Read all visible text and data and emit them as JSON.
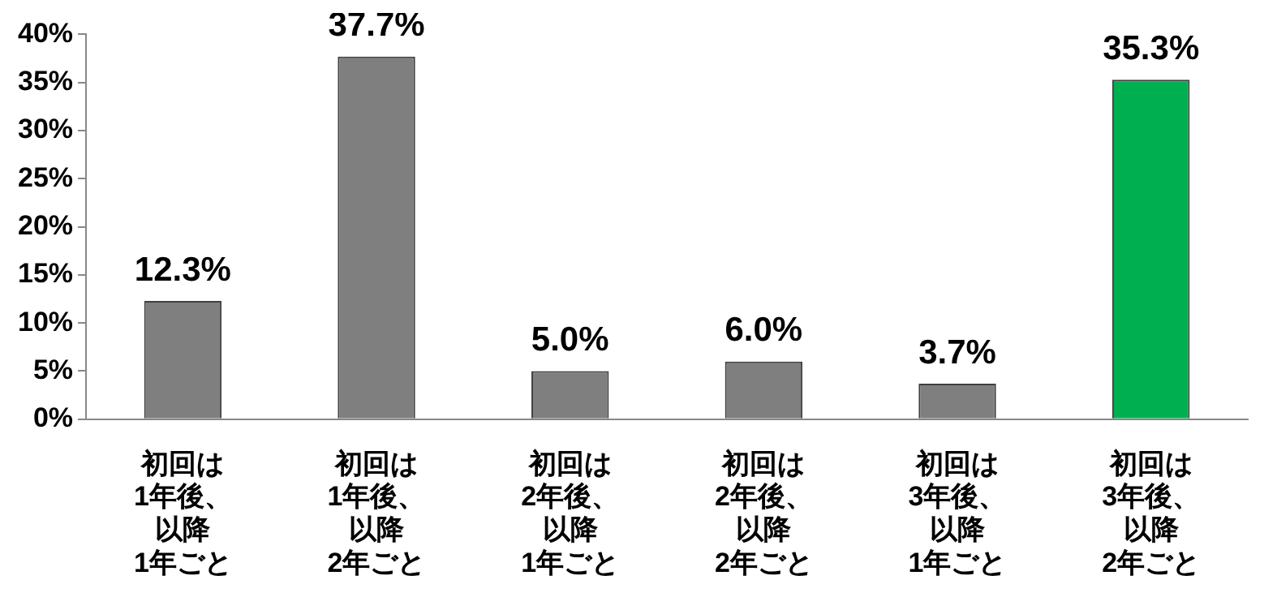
{
  "chart_data": {
    "type": "bar",
    "categories": [
      "初回は1年後、以降1年ごと",
      "初回は1年後、以降2年ごと",
      "初回は2年後、以降1年ごと",
      "初回は2年後、以降2年ごと",
      "初回は3年後、以降1年ごと",
      "初回は3年後、以降2年ごと"
    ],
    "values": [
      12.3,
      37.7,
      5.0,
      6.0,
      3.7,
      35.3
    ],
    "colors": [
      "#7f7f7f",
      "#7f7f7f",
      "#7f7f7f",
      "#7f7f7f",
      "#7f7f7f",
      "#00b050"
    ],
    "value_labels": [
      "12.3%",
      "37.7%",
      "5.0%",
      "6.0%",
      "3.7%",
      "35.3%"
    ],
    "ylim": [
      0,
      40
    ],
    "yticks": [
      {
        "value": 0,
        "label": "0%"
      },
      {
        "value": 5,
        "label": "5%"
      },
      {
        "value": 10,
        "label": "10%"
      },
      {
        "value": 15,
        "label": "15%"
      },
      {
        "value": 20,
        "label": "20%"
      },
      {
        "value": 25,
        "label": "25%"
      },
      {
        "value": 30,
        "label": "30%"
      },
      {
        "value": 35,
        "label": "35%"
      },
      {
        "value": 40,
        "label": "40%"
      }
    ],
    "grid": false,
    "legend": false
  }
}
